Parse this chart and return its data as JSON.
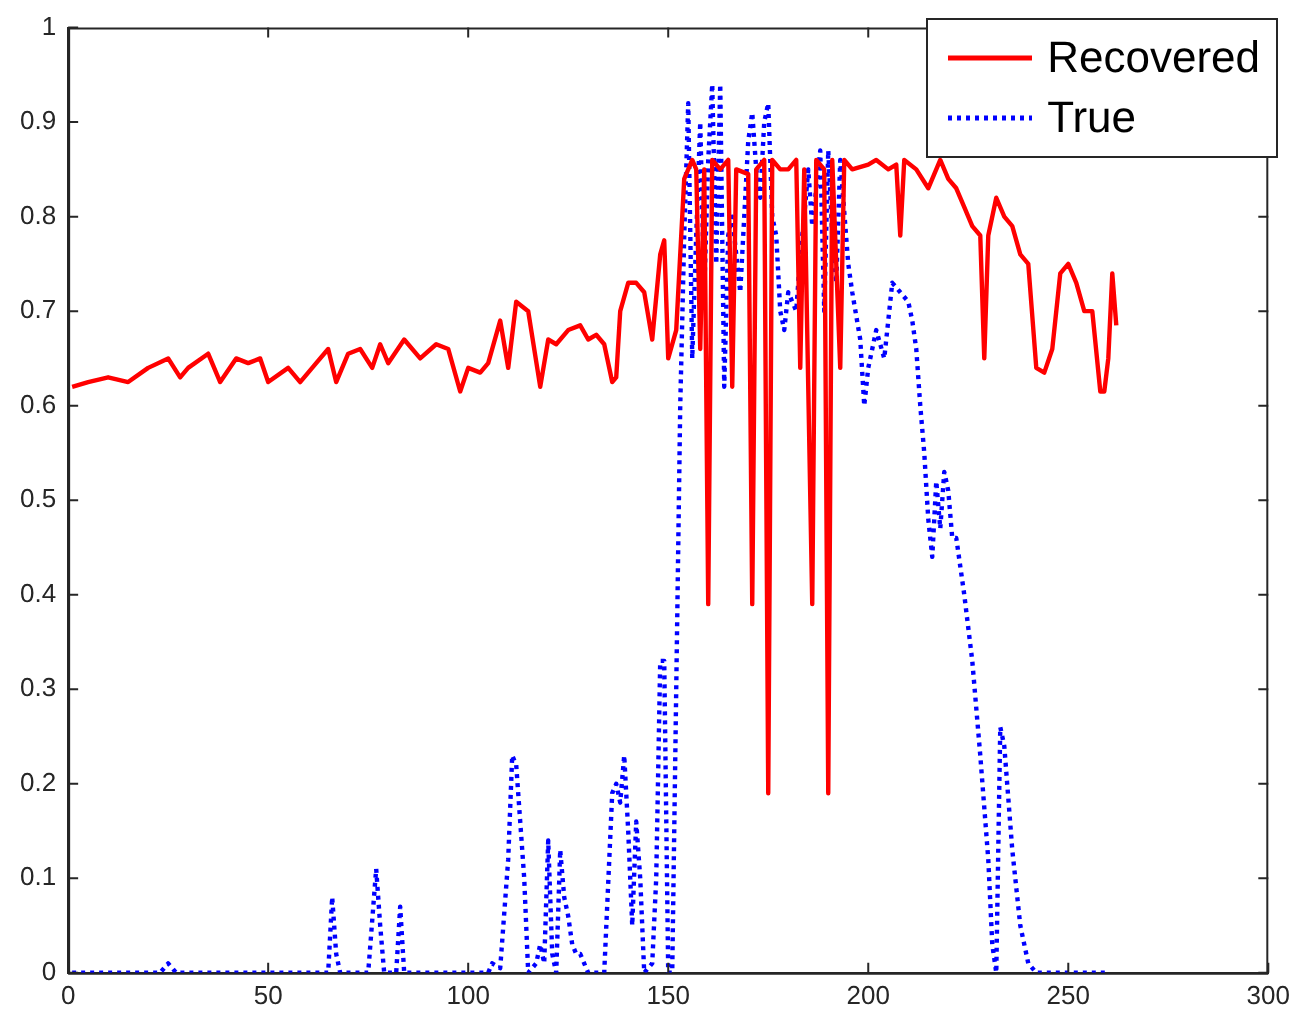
{
  "chart_data": {
    "type": "line",
    "xlim": [
      0,
      300
    ],
    "xticks": [
      0,
      50,
      100,
      150,
      200,
      250,
      300
    ],
    "ylim": [
      0,
      1
    ],
    "yticks": [
      0,
      0.1,
      0.2,
      0.3,
      0.4,
      0.5,
      0.6,
      0.7,
      0.8,
      0.9,
      1
    ],
    "grid": false,
    "legend": "top right",
    "marker": "none",
    "series": [
      {
        "name": "Recovered",
        "color": "#ff0000",
        "line_style": "solid",
        "x": [
          1,
          5,
          10,
          15,
          20,
          25,
          28,
          30,
          35,
          38,
          42,
          45,
          48,
          50,
          55,
          58,
          62,
          65,
          67,
          70,
          73,
          76,
          78,
          80,
          84,
          88,
          92,
          95,
          98,
          100,
          103,
          105,
          108,
          110,
          112,
          115,
          118,
          120,
          122,
          125,
          128,
          130,
          132,
          134,
          136,
          137,
          138,
          140,
          142,
          144,
          146,
          148,
          149,
          150,
          152,
          154,
          156,
          157,
          158,
          159,
          160,
          161,
          163,
          165,
          166,
          167,
          170,
          171,
          172,
          174,
          175,
          176,
          178,
          180,
          182,
          183,
          184,
          186,
          187,
          189,
          190,
          191,
          193,
          194,
          196,
          200,
          202,
          205,
          207,
          208,
          209,
          212,
          215,
          218,
          220,
          222,
          224,
          226,
          228,
          229,
          230,
          232,
          234,
          236,
          238,
          240,
          242,
          244,
          246,
          248,
          250,
          252,
          254,
          256,
          258,
          259,
          260,
          261,
          262
        ],
        "values": [
          0.62,
          0.625,
          0.63,
          0.625,
          0.64,
          0.65,
          0.63,
          0.64,
          0.655,
          0.625,
          0.65,
          0.645,
          0.65,
          0.625,
          0.64,
          0.625,
          0.645,
          0.66,
          0.625,
          0.655,
          0.66,
          0.64,
          0.665,
          0.645,
          0.67,
          0.65,
          0.665,
          0.66,
          0.615,
          0.64,
          0.635,
          0.645,
          0.69,
          0.64,
          0.71,
          0.7,
          0.62,
          0.67,
          0.665,
          0.68,
          0.685,
          0.67,
          0.675,
          0.665,
          0.625,
          0.63,
          0.7,
          0.73,
          0.73,
          0.72,
          0.67,
          0.76,
          0.775,
          0.65,
          0.68,
          0.84,
          0.86,
          0.85,
          0.66,
          0.85,
          0.39,
          0.86,
          0.85,
          0.86,
          0.62,
          0.85,
          0.845,
          0.39,
          0.85,
          0.86,
          0.19,
          0.86,
          0.85,
          0.85,
          0.86,
          0.64,
          0.85,
          0.39,
          0.86,
          0.85,
          0.19,
          0.86,
          0.64,
          0.86,
          0.85,
          0.855,
          0.86,
          0.85,
          0.855,
          0.78,
          0.86,
          0.85,
          0.83,
          0.86,
          0.84,
          0.83,
          0.81,
          0.79,
          0.78,
          0.65,
          0.78,
          0.82,
          0.8,
          0.79,
          0.76,
          0.75,
          0.64,
          0.635,
          0.66,
          0.74,
          0.75,
          0.73,
          0.7,
          0.7,
          0.615,
          0.615,
          0.65,
          0.74,
          0.685
        ]
      },
      {
        "name": "True",
        "color": "#0000ff",
        "line_style": "dotted",
        "x": [
          1,
          23,
          25,
          27,
          65,
          66,
          67,
          68,
          75,
          77,
          78,
          79,
          82,
          83,
          84,
          105,
          106,
          108,
          110,
          111,
          112,
          114,
          115,
          117,
          118,
          119,
          120,
          121,
          122,
          123,
          124,
          125,
          126,
          127,
          128,
          130,
          134,
          136,
          137,
          138,
          139,
          140,
          141,
          142,
          143,
          144,
          146,
          147,
          148,
          149,
          150,
          151,
          152,
          153,
          154,
          155,
          156,
          157,
          158,
          159,
          160,
          161,
          162,
          163,
          164,
          165,
          166,
          167,
          168,
          170,
          171,
          172,
          173,
          174,
          175,
          176,
          177,
          178,
          179,
          180,
          182,
          183,
          184,
          185,
          186,
          187,
          188,
          189,
          190,
          191,
          192,
          193,
          195,
          196,
          198,
          199,
          200,
          202,
          204,
          206,
          208,
          210,
          211,
          212,
          213,
          214,
          215,
          216,
          217,
          218,
          219,
          220,
          221,
          222,
          224,
          226,
          228,
          230,
          231,
          232,
          233,
          234,
          236,
          238,
          240,
          242,
          260
        ],
        "values": [
          0,
          0,
          0.01,
          0,
          0,
          0.08,
          0.02,
          0,
          0,
          0.11,
          0.05,
          0,
          0,
          0.07,
          0,
          0,
          0.01,
          0.005,
          0.12,
          0.23,
          0.22,
          0.1,
          0,
          0.01,
          0.03,
          0.01,
          0.14,
          0.02,
          0,
          0.13,
          0.08,
          0.06,
          0.03,
          0.02,
          0.02,
          0,
          0,
          0.19,
          0.2,
          0.18,
          0.23,
          0.15,
          0.05,
          0.16,
          0.1,
          0,
          0.01,
          0.1,
          0.33,
          0.33,
          0,
          0,
          0.3,
          0.6,
          0.78,
          0.92,
          0.65,
          0.78,
          0.9,
          0.72,
          0.86,
          0.94,
          0.75,
          0.94,
          0.62,
          0.78,
          0.8,
          0.76,
          0.72,
          0.88,
          0.91,
          0.85,
          0.82,
          0.9,
          0.92,
          0.8,
          0.78,
          0.7,
          0.68,
          0.72,
          0.7,
          0.76,
          0.8,
          0.85,
          0.79,
          0.83,
          0.87,
          0.7,
          0.87,
          0.78,
          0.73,
          0.86,
          0.75,
          0.72,
          0.67,
          0.6,
          0.64,
          0.68,
          0.65,
          0.73,
          0.72,
          0.71,
          0.69,
          0.66,
          0.6,
          0.55,
          0.48,
          0.44,
          0.52,
          0.47,
          0.53,
          0.51,
          0.46,
          0.46,
          0.4,
          0.33,
          0.23,
          0.12,
          0.03,
          0,
          0.26,
          0.24,
          0.13,
          0.05,
          0.01,
          0,
          0
        ]
      }
    ]
  }
}
